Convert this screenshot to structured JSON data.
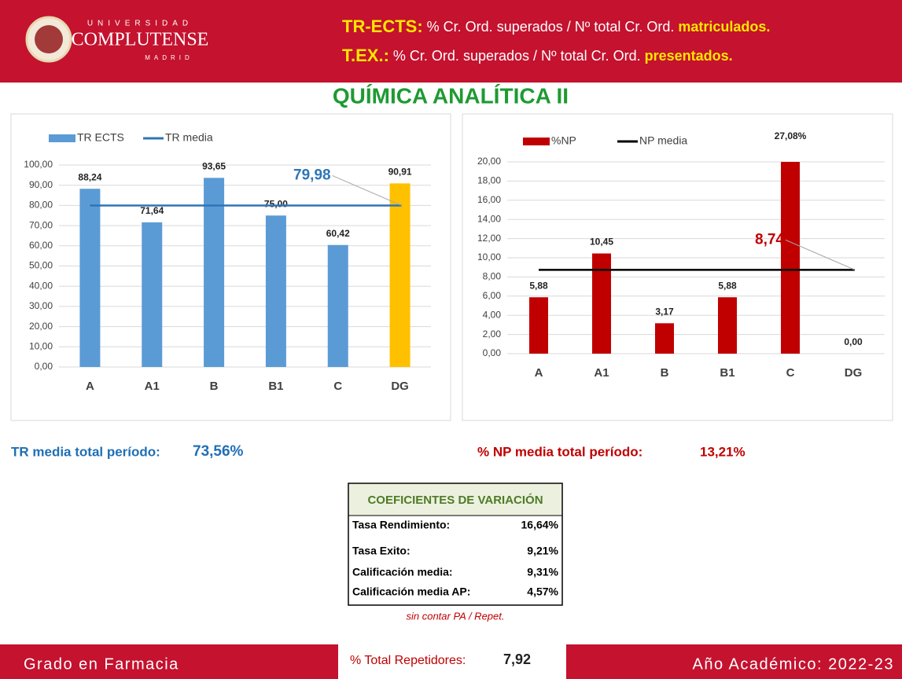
{
  "header": {
    "logo": {
      "top": "UNIVERSIDAD",
      "main": "COMPLUTENSE",
      "bottom": "MADRID"
    },
    "line1": {
      "key": "TR-ECTS:",
      "text": "% Cr. Ord. superados / Nº total Cr. Ord.",
      "end": "matriculados."
    },
    "line2": {
      "key": "T.EX.:",
      "text": "% Cr. Ord. superados / Nº total Cr. Ord.",
      "end": "presentados."
    }
  },
  "title": "QUÍMICA ANALÍTICA II",
  "chart_data": [
    {
      "type": "bar",
      "categories": [
        "A",
        "A1",
        "B",
        "B1",
        "C",
        "DG"
      ],
      "series": [
        {
          "name": "TR ECTS",
          "color": "#5b9bd5",
          "values": [
            88.24,
            71.64,
            93.65,
            75.0,
            60.42,
            90.91
          ],
          "value_labels": [
            "88,24",
            "71,64",
            "93,65",
            "75,00",
            "60,42",
            "90,91"
          ],
          "point_colors": [
            "#5b9bd5",
            "#5b9bd5",
            "#5b9bd5",
            "#5b9bd5",
            "#5b9bd5",
            "#ffc000"
          ]
        }
      ],
      "lines": [
        {
          "name": "TR media",
          "value": 79.98,
          "label": "79,98",
          "color": "#2e75b6",
          "label_color": "#2e75b6"
        }
      ],
      "ylim": [
        0,
        100
      ],
      "yticks": [
        {
          "value": 0,
          "label": "0,00"
        },
        {
          "value": 10,
          "label": "10,00"
        },
        {
          "value": 20,
          "label": "20,00"
        },
        {
          "value": 30,
          "label": "30,00"
        },
        {
          "value": 40,
          "label": "40,00"
        },
        {
          "value": 50,
          "label": "50,00"
        },
        {
          "value": 60,
          "label": "60,00"
        },
        {
          "value": 70,
          "label": "70,00"
        },
        {
          "value": 80,
          "label": "80,00"
        },
        {
          "value": 90,
          "label": "90,00"
        },
        {
          "value": 100,
          "label": "100,00"
        }
      ],
      "grid": true
    },
    {
      "type": "bar",
      "categories": [
        "A",
        "A1",
        "B",
        "B1",
        "C",
        "DG"
      ],
      "series": [
        {
          "name": "%NP",
          "color": "#c00000",
          "values": [
            5.88,
            10.45,
            3.17,
            5.88,
            27.08,
            0.0
          ],
          "value_labels": [
            "5,88",
            "10,45",
            "3,17",
            "5,88",
            "27,08%",
            "0,00"
          ],
          "point_colors": [
            "#c00000",
            "#c00000",
            "#c00000",
            "#c00000",
            "#c00000",
            "#c00000"
          ]
        }
      ],
      "lines": [
        {
          "name": "NP media",
          "value": 8.74,
          "label": "8,74",
          "color": "#000000",
          "label_color": "#c00000"
        }
      ],
      "ylim": [
        0,
        20
      ],
      "yticks": [
        {
          "value": 0,
          "label": "0,00"
        },
        {
          "value": 2,
          "label": "2,00"
        },
        {
          "value": 4,
          "label": "4,00"
        },
        {
          "value": 6,
          "label": "6,00"
        },
        {
          "value": 8,
          "label": "8,00"
        },
        {
          "value": 10,
          "label": "10,00"
        },
        {
          "value": 12,
          "label": "12,00"
        },
        {
          "value": 14,
          "label": "14,00"
        },
        {
          "value": 16,
          "label": "16,00"
        },
        {
          "value": 18,
          "label": "18,00"
        },
        {
          "value": 20,
          "label": "20,00"
        }
      ],
      "grid": true
    }
  ],
  "summary": {
    "tr_label": "TR media total período:",
    "tr_value": "73,56%",
    "np_label": "% NP media total período:",
    "np_value": "13,21%"
  },
  "table": {
    "title": "COEFICIENTES DE VARIACIÓN",
    "rows": [
      [
        "Tasa Rendimiento:",
        "16,64%"
      ],
      [
        "Tasa Exito:",
        "9,21%"
      ],
      [
        "Calificación media:",
        "9,31%"
      ],
      [
        "Calificación media AP:",
        "4,57%"
      ]
    ],
    "note": "sin contar PA / Repet."
  },
  "footer": {
    "left": "Grado en Farmacia",
    "rep_label": "% Total Repetidores:",
    "rep_value": "7,92",
    "right": "Año Académico: 2022-23"
  }
}
